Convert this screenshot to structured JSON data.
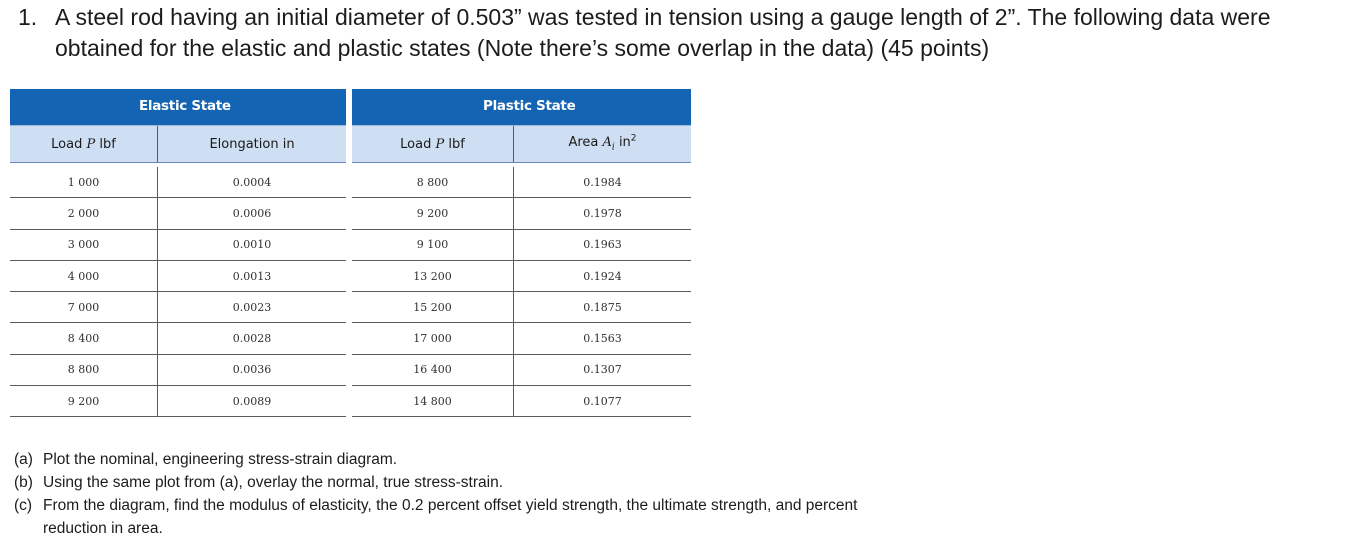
{
  "problem": {
    "number": "1.",
    "text": "A steel rod having an initial diameter of 0.503” was tested in tension using a gauge length of 2”. The following data were obtained for the elastic and plastic states (Note there’s some overlap in the data) (45 points)"
  },
  "tables": {
    "elastic": {
      "title": "Elastic State",
      "headers": [
        "Load P lbf",
        "Elongation in"
      ],
      "rows": [
        [
          "1 000",
          "0.0004"
        ],
        [
          "2 000",
          "0.0006"
        ],
        [
          "3 000",
          "0.0010"
        ],
        [
          "4 000",
          "0.0013"
        ],
        [
          "7 000",
          "0.0023"
        ],
        [
          "8 400",
          "0.0028"
        ],
        [
          "8 800",
          "0.0036"
        ],
        [
          "9 200",
          "0.0089"
        ]
      ]
    },
    "plastic": {
      "title": "Plastic State",
      "headers": [
        "Load P lbf",
        "Area Ai in2"
      ],
      "rows": [
        [
          "8 800",
          "0.1984"
        ],
        [
          "9 200",
          "0.1978"
        ],
        [
          "9 100",
          "0.1963"
        ],
        [
          "13 200",
          "0.1924"
        ],
        [
          "15 200",
          "0.1875"
        ],
        [
          "17 000",
          "0.1563"
        ],
        [
          "16 400",
          "0.1307"
        ],
        [
          "14 800",
          "0.1077"
        ]
      ]
    }
  },
  "questions": [
    {
      "label": "(a)",
      "text": "Plot the nominal, engineering stress-strain diagram."
    },
    {
      "label": "(b)",
      "text": "Using the same plot from (a), overlay the normal, true stress-strain."
    },
    {
      "label": "(c)",
      "text": "From the diagram, find the modulus of elasticity, the 0.2 percent offset yield strength, the ultimate strength, and percent reduction in area."
    }
  ]
}
